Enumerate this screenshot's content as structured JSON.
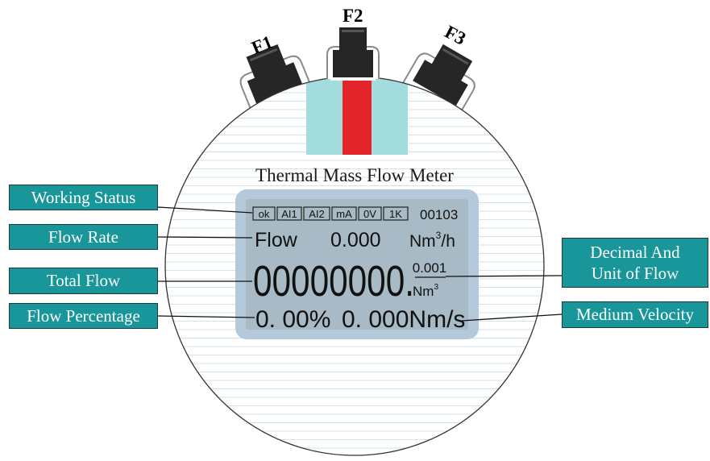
{
  "title": "Thermal Mass Flow Meter",
  "buttons": {
    "f1": "F1",
    "f2": "F2",
    "f3": "F3"
  },
  "colors": {
    "callout_bg": "#18969a",
    "lcd_bezel": "#b4c9d9",
    "lcd_screen": "#a7bac5",
    "window_cyan": "#a3dcdd",
    "window_red": "#e3242b",
    "button_dark": "#262626"
  },
  "lcd": {
    "status_flags": [
      "ok",
      "AI1",
      "AI2",
      "mA",
      "0V",
      "1K"
    ],
    "status_code": "00103",
    "flow_label": "Flow",
    "flow_value": "0.000",
    "flow_unit_base": "Nm",
    "flow_unit_exp": "3",
    "flow_unit_tail": "/h",
    "total_value": "00000000.",
    "decimal_value": "0.001",
    "total_unit_base": "Nm",
    "total_unit_exp": "3",
    "percentage": "0. 00%",
    "velocity": "0. 000Nm/s"
  },
  "callouts": {
    "working_status": "Working Status",
    "flow_rate": "Flow Rate",
    "total_flow": "Total Flow",
    "flow_percentage": "Flow Percentage",
    "decimal_unit_line1": "Decimal And",
    "decimal_unit_line2": "Unit of Flow",
    "medium_velocity": "Medium Velocity"
  }
}
